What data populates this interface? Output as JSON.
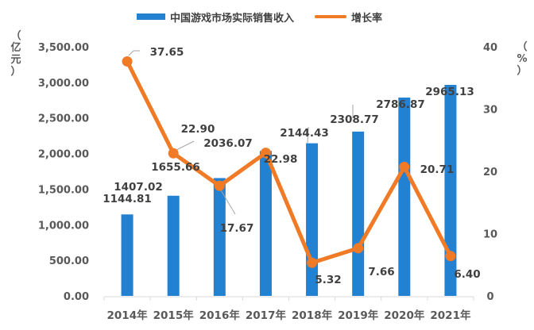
{
  "legend": {
    "bar_label": "中国游戏市场实际销售收入",
    "line_label": "增长率"
  },
  "axes": {
    "left_title_chars": [
      "（",
      "亿",
      "元",
      "）"
    ],
    "right_title_chars": [
      "（",
      "%",
      "）"
    ],
    "left_ticks": [
      "0.00",
      "500.00",
      "1,000.00",
      "1,500.00",
      "2,000.00",
      "2,500.00",
      "3,000.00",
      "3,500.00"
    ],
    "right_ticks": [
      "0",
      "10",
      "20",
      "30",
      "40"
    ]
  },
  "colors": {
    "bar": "#2381d2",
    "line": "#f07a26",
    "text": "#404040",
    "axis_text": "#595959",
    "axis_line": "#d9d9d9"
  },
  "chart_data": {
    "type": "bar+line",
    "title": "",
    "categories": [
      "2014年",
      "2015年",
      "2016年",
      "2017年",
      "2018年",
      "2019年",
      "2020年",
      "2021年"
    ],
    "series": [
      {
        "name": "中国游戏市场实际销售收入",
        "type": "bar",
        "axis": "left",
        "unit": "亿元",
        "values": [
          1144.81,
          1407.02,
          1655.66,
          2036.07,
          2144.43,
          2308.77,
          2786.87,
          2965.13
        ],
        "labels": [
          "1144.81",
          "1407.02",
          "1655.66",
          "2036.07",
          "2144.43",
          "2308.77",
          "2786.87",
          "2965.13"
        ]
      },
      {
        "name": "增长率",
        "type": "line",
        "axis": "right",
        "unit": "%",
        "values": [
          37.65,
          22.9,
          17.67,
          22.98,
          5.32,
          7.66,
          20.71,
          6.4
        ],
        "labels": [
          "37.65",
          "22.90",
          "17.67",
          "22.98",
          "5.32",
          "7.66",
          "20.71",
          "6.40"
        ]
      }
    ],
    "ylabel_left": "（亿元）",
    "ylabel_right": "（%）",
    "ylim_left": [
      0,
      3500
    ],
    "ylim_right": [
      0,
      40
    ],
    "grid": false,
    "legend_position": "top"
  }
}
